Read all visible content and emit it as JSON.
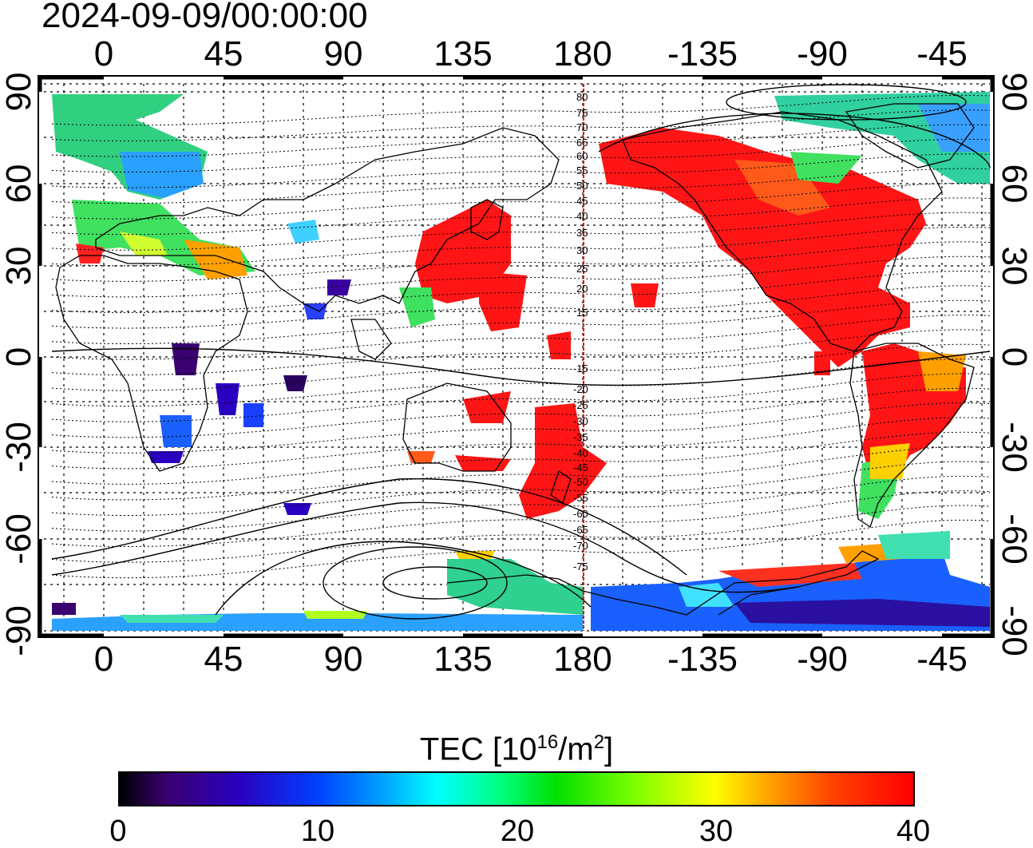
{
  "timestamp": "2024-09-09/00:00:00",
  "map": {
    "top_ticks": [
      "0",
      "45",
      "90",
      "135",
      "180",
      "-135",
      "-90",
      "-45"
    ],
    "bottom_ticks": [
      "0",
      "45",
      "90",
      "135",
      "180",
      "-135",
      "-90",
      "-45"
    ],
    "left_ticks": [
      "90",
      "60",
      "30",
      "0",
      "-30",
      "-60",
      "-90"
    ],
    "right_ticks": [
      "90",
      "60",
      "30",
      "0",
      "-30",
      "-60",
      "-90"
    ],
    "meridian_label": "180",
    "contour_labels_north": [
      "80",
      "75",
      "70",
      "65",
      "60",
      "55",
      "50",
      "45",
      "40",
      "35",
      "30",
      "25",
      "20",
      "15"
    ],
    "contour_labels_south": [
      "-15",
      "-20",
      "-25",
      "-30",
      "-35",
      "-40",
      "-45",
      "-50",
      "-55",
      "-60",
      "-65",
      "-70",
      "-75"
    ]
  },
  "colorbar": {
    "title_prefix": "TEC  [10",
    "title_sup1": "16",
    "title_mid": "/m",
    "title_sup2": "2",
    "title_suffix": "]",
    "labels": [
      "0",
      "10",
      "20",
      "30",
      "40"
    ],
    "range": [
      0,
      40
    ],
    "colors": [
      "#000000",
      "#2a00c0",
      "#00ffff",
      "#00e000",
      "#ffff00",
      "#ff0000"
    ]
  }
}
